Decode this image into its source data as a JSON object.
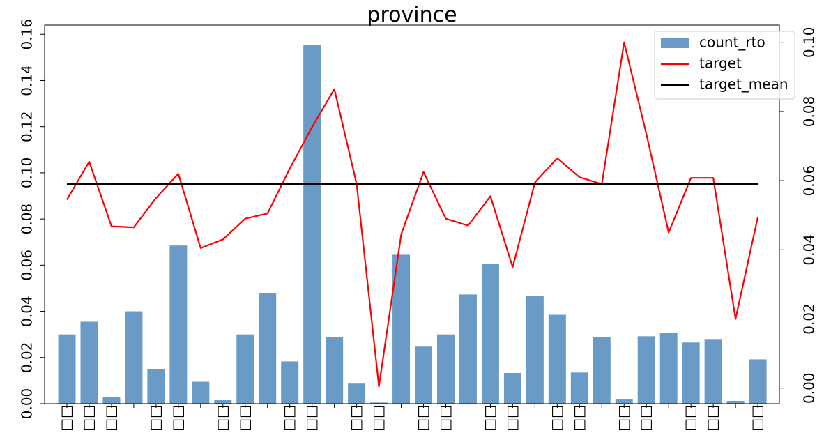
{
  "chart_data": {
    "type": "bar",
    "title": "province",
    "xlabel": "",
    "ylabel": "",
    "categories": [
      "□□",
      "□□",
      "□□",
      "",
      "□□",
      "□□",
      "",
      "□□",
      "□□",
      "",
      "□□",
      "□□",
      "",
      "□□",
      "□□",
      "",
      "□□",
      "□□",
      "",
      "□□",
      "□□",
      "",
      "□□",
      "□□",
      "",
      "□□",
      "□□",
      "",
      "□□",
      "□□",
      "",
      "□□"
    ],
    "series": [
      {
        "name": "count_rto",
        "kind": "bar",
        "axis": "left",
        "color": "#6a9bc6",
        "values": [
          0.03,
          0.0355,
          0.003,
          0.04,
          0.015,
          0.0685,
          0.0095,
          0.0015,
          0.03,
          0.048,
          0.0183,
          0.1555,
          0.0288,
          0.0087,
          0.0005,
          0.0645,
          0.0247,
          0.03,
          0.0473,
          0.0607,
          0.0133,
          0.0465,
          0.0385,
          0.0135,
          0.0288,
          0.0018,
          0.0292,
          0.0305,
          0.0265,
          0.0277,
          0.0012,
          0.0192
        ]
      },
      {
        "name": "target",
        "kind": "line",
        "axis": "right",
        "color": "#ff0000",
        "values": [
          0.0545,
          0.0655,
          0.0468,
          0.0465,
          0.055,
          0.062,
          0.0405,
          0.043,
          0.049,
          0.0505,
          0.0635,
          0.0755,
          0.0865,
          0.059,
          0.0005,
          0.0445,
          0.0625,
          0.049,
          0.047,
          0.0555,
          0.035,
          0.0595,
          0.0665,
          0.061,
          0.059,
          0.1,
          0.0735,
          0.045,
          0.0608,
          0.0608,
          0.02,
          0.0495
        ]
      },
      {
        "name": "target_mean",
        "kind": "line",
        "axis": "right",
        "color": "#000000",
        "values": [
          0.059,
          0.059,
          0.059,
          0.059,
          0.059,
          0.059,
          0.059,
          0.059,
          0.059,
          0.059,
          0.059,
          0.059,
          0.059,
          0.059,
          0.059,
          0.059,
          0.059,
          0.059,
          0.059,
          0.059,
          0.059,
          0.059,
          0.059,
          0.059,
          0.059,
          0.059,
          0.059,
          0.059,
          0.059,
          0.059,
          0.059,
          0.059
        ]
      }
    ],
    "y_left": {
      "lim": [
        0,
        0.164
      ],
      "ticks": [
        "0.00",
        "0.02",
        "0.04",
        "0.06",
        "0.08",
        "0.10",
        "0.12",
        "0.14",
        "0.16"
      ]
    },
    "y_right": {
      "lim": [
        -0.0045,
        0.105
      ],
      "ticks": [
        "0.00",
        "0.02",
        "0.04",
        "0.06",
        "0.08",
        "0.10"
      ]
    },
    "grid": false,
    "legend_position": "top-right"
  }
}
